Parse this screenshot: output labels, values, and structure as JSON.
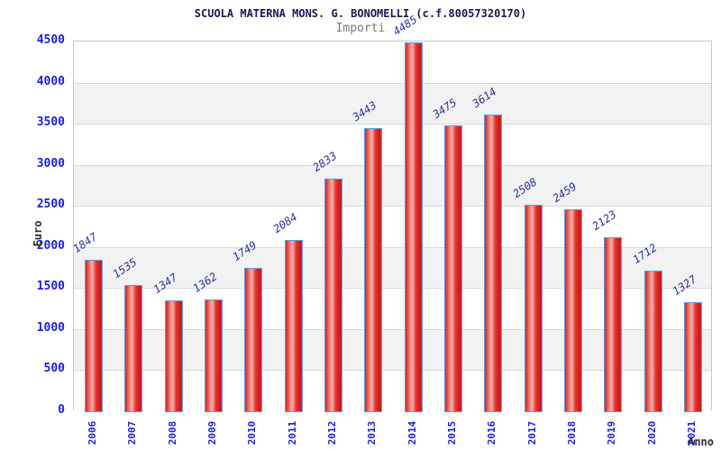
{
  "title": "SCUOLA MATERNA MONS. G. BONOMELLI (c.f.80057320170)",
  "subtitle": "Importi",
  "chart_data": {
    "type": "bar",
    "title": "SCUOLA MATERNA MONS. G. BONOMELLI (c.f.80057320170)",
    "subtitle": "Importi",
    "xlabel": "Anno",
    "ylabel": "Euro",
    "categories": [
      "2006",
      "2007",
      "2008",
      "2009",
      "2010",
      "2011",
      "2012",
      "2013",
      "2014",
      "2015",
      "2016",
      "2017",
      "2018",
      "2019",
      "2020",
      "2021"
    ],
    "values": [
      1847,
      1535,
      1347,
      1362,
      1749,
      2084,
      2833,
      3443,
      4485,
      3475,
      3614,
      2508,
      2459,
      2123,
      1712,
      1327
    ],
    "ylim": [
      0,
      4500
    ],
    "ytick_step": 500,
    "yticks": [
      "0",
      "500",
      "1000",
      "1500",
      "2000",
      "2500",
      "3000",
      "3500",
      "4000",
      "4500"
    ],
    "grid": true,
    "legend": "none",
    "colors": {
      "bar_edge_red": "#dd2027",
      "bar_highlight": "#f5aaa2",
      "bar_border": "#639ae8",
      "tick_label_blue": "#1c1ce0",
      "value_label_blue": "#2a3195",
      "title_navy": "#191952",
      "subtitle_gray": "#7b7b7b",
      "axis_label_dark": "#2d2d2d",
      "band_gray": "#f2f2f2",
      "gridline_gray": "#d9d9d9",
      "plot_border_gray": "#c8c8c8"
    }
  }
}
